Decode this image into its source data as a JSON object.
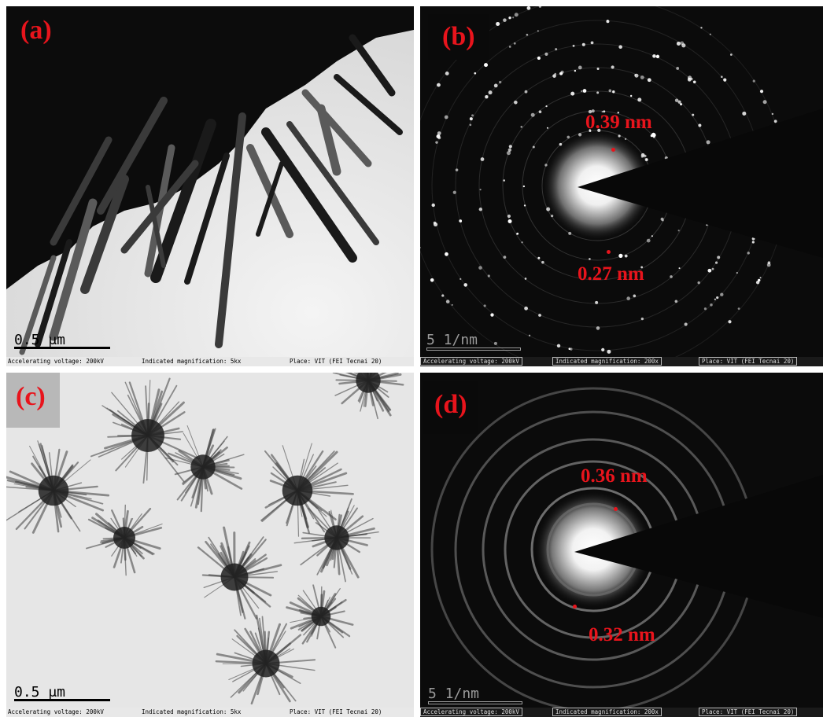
{
  "panels": {
    "a": {
      "label": "(a)",
      "scale_bar": "0.5 μm",
      "info": {
        "voltage": "Accelerating voltage: 200kV",
        "magnification": "Indicated magnification: 5kx",
        "place": "Place: VIT (FEI Tecnai 20)"
      }
    },
    "b": {
      "label": "(b)",
      "scale_bar": "5 1/nm",
      "d_spacing_top": "0.39 nm",
      "d_spacing_bottom": "0.27 nm",
      "info": {
        "voltage": "Accelerating voltage: 200kV",
        "magnification": "Indicated magnification: 200x",
        "place": "Place: VIT (FEI Tecnai 20)"
      }
    },
    "c": {
      "label": "(c)",
      "scale_bar": "0.5 μm",
      "info": {
        "voltage": "Accelerating voltage: 200kV",
        "magnification": "Indicated magnification: 5kx",
        "place": "Place: VIT (FEI Tecnai 20)"
      }
    },
    "d": {
      "label": "(d)",
      "scale_bar": "5 1/nm",
      "d_spacing_top": "0.36 nm",
      "d_spacing_bottom": "0.32 nm",
      "info": {
        "voltage": "Accelerating voltage: 200kV",
        "magnification": "Indicated magnification: 200x",
        "place": "Place: VIT (FEI Tecnai 20)"
      }
    }
  }
}
